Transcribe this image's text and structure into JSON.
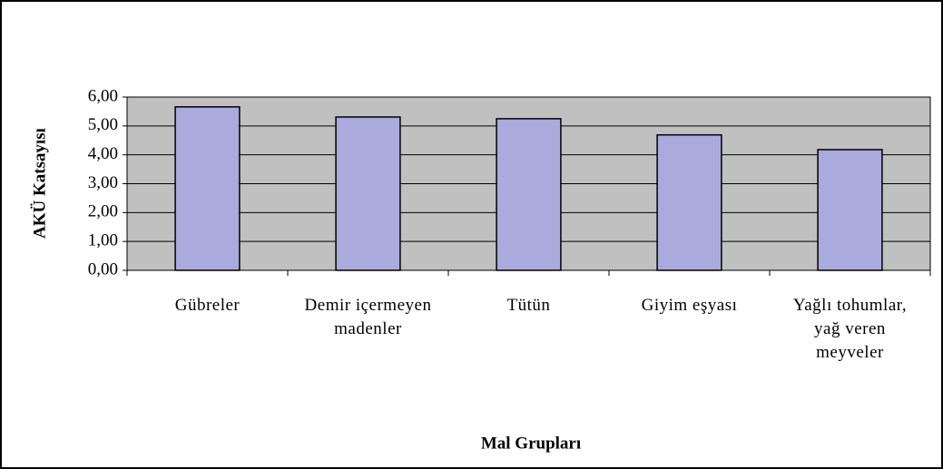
{
  "chart_data": {
    "type": "bar",
    "x_label": "Mal Grupları",
    "y_label": "AKÜ Katsayısı",
    "categories": [
      "Gübreler",
      "Demir içermeyen madenler",
      "Tütün",
      "Giyim eşyası",
      "Yağlı tohumlar, yağ veren meyveler"
    ],
    "values": [
      5.66,
      5.31,
      5.25,
      4.69,
      4.18
    ],
    "color": "#aaaadd",
    "ylim": [
      0,
      6
    ],
    "yticks": [
      {
        "value": 0,
        "label": "0,00"
      },
      {
        "value": 1,
        "label": "1,00"
      },
      {
        "value": 2,
        "label": "2,00"
      },
      {
        "value": 3,
        "label": "3,00"
      },
      {
        "value": 4,
        "label": "4,00"
      },
      {
        "value": 5,
        "label": "5,00"
      },
      {
        "value": 6,
        "label": "6,00"
      }
    ],
    "grid": true
  }
}
